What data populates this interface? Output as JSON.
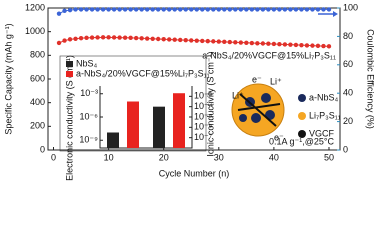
{
  "chart_data": [
    {
      "type": "line",
      "xlabel": "Cycle Number (n)",
      "ylabel": "Specific Capacity (mAh g⁻¹)",
      "y2label": "Coulombic Efficiency (%)",
      "x": [
        1,
        2,
        3,
        4,
        5,
        6,
        7,
        8,
        9,
        10,
        11,
        12,
        13,
        14,
        15,
        16,
        17,
        18,
        19,
        20,
        21,
        22,
        23,
        24,
        25,
        26,
        27,
        28,
        29,
        30,
        31,
        32,
        33,
        34,
        35,
        36,
        37,
        38,
        39,
        40,
        41,
        42,
        43,
        44,
        45,
        46,
        47,
        48,
        49,
        50
      ],
      "xlim": [
        -1,
        52
      ],
      "xticks": [
        0,
        10,
        20,
        30,
        40,
        50
      ],
      "ylim": [
        0,
        1200
      ],
      "yticks": [
        0,
        200,
        400,
        600,
        800,
        1000,
        1200
      ],
      "y2lim": [
        0,
        100
      ],
      "y2ticks": [
        0,
        20,
        40,
        60,
        80,
        100
      ],
      "series": [
        {
          "name": "a-NbS₄/20%VGCF@15%Li₇P₃S₁₁",
          "color": "#e0312a",
          "values": [
            905,
            925,
            935,
            940,
            945,
            948,
            950,
            951,
            952,
            952,
            951,
            950,
            949,
            948,
            946,
            944,
            942,
            940,
            938,
            936,
            934,
            932,
            930,
            928,
            926,
            924,
            922,
            920,
            918,
            916,
            914,
            912,
            910,
            908,
            906,
            904,
            902,
            900,
            898,
            896,
            894,
            892,
            890,
            888,
            886,
            884,
            882,
            880,
            878,
            876
          ]
        },
        {
          "color": "#3b64d6",
          "axis": "y2",
          "values": [
            96,
            98,
            98.5,
            99,
            99,
            99,
            99,
            99,
            99,
            99,
            99,
            99,
            99,
            99,
            99,
            99,
            99,
            99,
            99,
            99,
            99,
            99,
            99,
            99,
            99,
            99,
            99,
            99,
            99,
            99,
            99,
            99,
            99,
            99,
            99,
            99,
            99,
            99,
            99,
            99,
            99,
            99,
            99,
            99,
            99,
            99,
            99,
            99,
            99,
            99
          ]
        }
      ],
      "annotations": {
        "labels": [
          "a-NbS₄",
          "Li₇P₃S₁₁",
          "VGCF"
        ],
        "ion": "Li⁺",
        "electron": "e⁻",
        "condition": "0.1A g⁻¹,@25°C"
      }
    },
    {
      "type": "bar",
      "log_scale": true,
      "ylabel": "Electronic conductivity (S cm⁻¹)",
      "y2label": "Ionic conductivity (S cm⁻¹)",
      "category_axes": [
        "y",
        "y2"
      ],
      "ylim": [
        1e-10,
        0.01
      ],
      "yticks": [
        {
          "value": 1e-09,
          "label": "10⁻⁹"
        },
        {
          "value": 1e-06,
          "label": "10⁻⁶"
        },
        {
          "value": 0.001,
          "label": "10⁻³"
        }
      ],
      "y2lim": [
        1e-08,
        0.01
      ],
      "y2ticks": [
        {
          "value": 1e-07,
          "label": "10⁻⁷"
        },
        {
          "value": 1e-06,
          "label": "10⁻⁶"
        },
        {
          "value": 1e-05,
          "label": "10⁻⁵"
        },
        {
          "value": 0.0001,
          "label": "10⁻⁴"
        },
        {
          "value": 0.001,
          "label": "10⁻³"
        }
      ],
      "series": [
        {
          "name": "NbS₄",
          "color": "#222222",
          "values": [
            1e-08,
            0.0001
          ]
        },
        {
          "name": "a-NbS₄/20%VGCF@15%Li₇P₃S₁₁",
          "color": "#e8231f",
          "values": [
            0.0001,
            0.002
          ]
        }
      ]
    }
  ]
}
